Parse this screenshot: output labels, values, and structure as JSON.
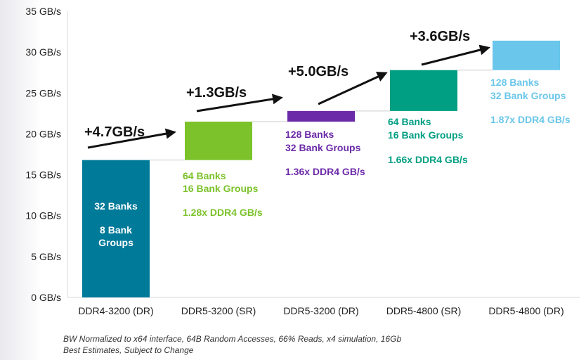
{
  "chart_data": {
    "type": "bar",
    "subtype": "waterfall",
    "categories": [
      "DDR4-3200 (DR)",
      "DDR5-3200 (SR)",
      "DDR5-3200 (DR)",
      "DDR5-4800 (SR)",
      "DDR5-4800 (DR)"
    ],
    "y_ticks": [
      "0 GB/s",
      "5 GB/s",
      "10 GB/s",
      "15 GB/s",
      "20 GB/s",
      "25 GB/s",
      "30 GB/s",
      "35 GB/s"
    ],
    "ylim": [
      0,
      35
    ],
    "bars": [
      {
        "start": 0,
        "end": 16.8,
        "color": "#007a99",
        "text_color": "#ffffff",
        "labels": [
          "32 Banks",
          "8 Bank",
          "Groups"
        ]
      },
      {
        "start": 16.8,
        "end": 21.5,
        "color": "#7cc22a",
        "text_color": "#7cc22a",
        "labels": [
          "64 Banks",
          "16 Bank Groups",
          "1.28x DDR4 GB/s"
        ]
      },
      {
        "start": 21.5,
        "end": 22.8,
        "color": "#6b2aa8",
        "text_color": "#6b2aa8",
        "labels": [
          "128 Banks",
          "32 Bank Groups",
          "1.36x DDR4 GB/s"
        ]
      },
      {
        "start": 22.8,
        "end": 27.8,
        "color": "#009e82",
        "text_color": "#009e82",
        "labels": [
          "64 Banks",
          "16 Bank Groups",
          "1.66x DDR4 GB/s"
        ]
      },
      {
        "start": 27.8,
        "end": 31.4,
        "color": "#6ac6ea",
        "text_color": "#6ac6ea",
        "labels": [
          "128 Banks",
          "32 Bank Groups",
          "1.87x DDR4 GB/s"
        ]
      }
    ],
    "increments": [
      "+4.7GB/s",
      "+1.3GB/s",
      "+5.0GB/s",
      "+3.6GB/s"
    ],
    "grid": false
  },
  "footnotes": [
    "BW Normalized to x64 interface, 64B Random Accesses, 66% Reads, x4 simulation, 16Gb",
    "Best Estimates, Subject to Change"
  ]
}
